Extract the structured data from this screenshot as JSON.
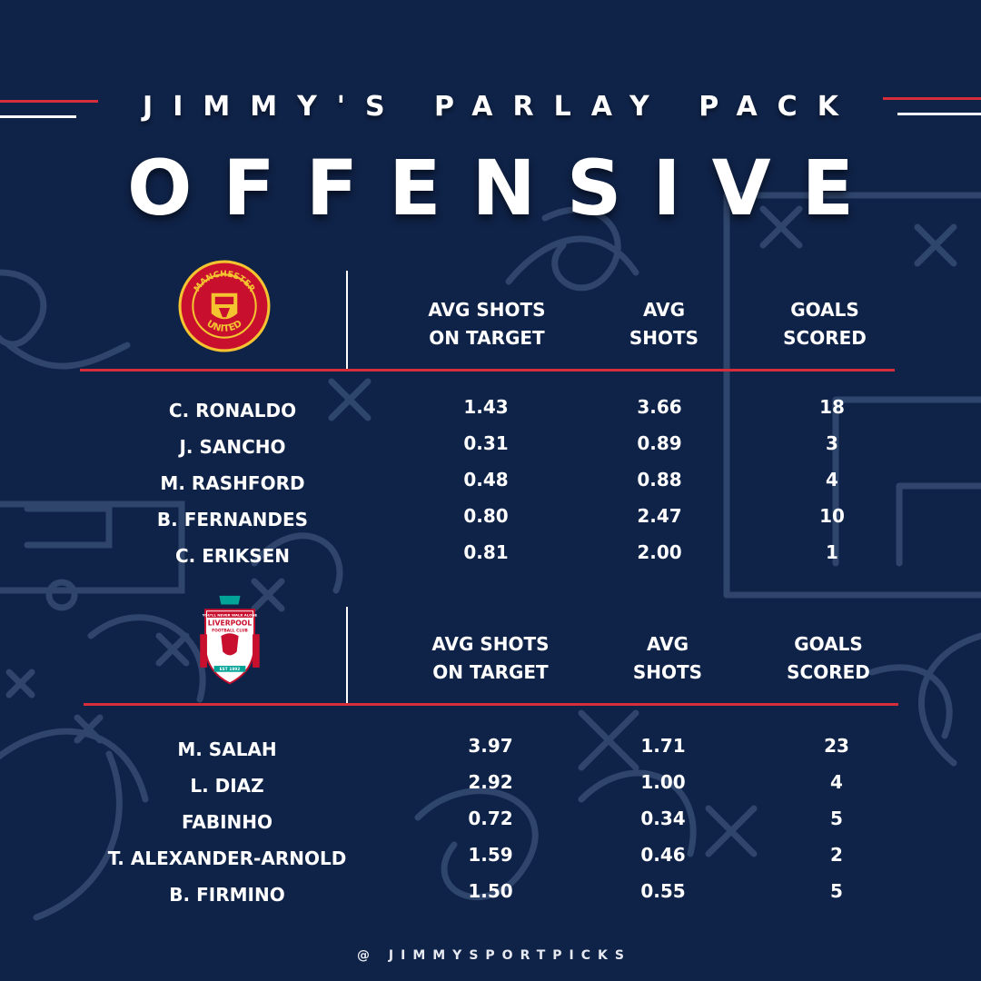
{
  "header": {
    "brand": "JIMMY'S PARLAY PACK",
    "title": "OFFENSIVE"
  },
  "colors": {
    "background": "#0f2247",
    "accent_red": "#d62d3a",
    "text": "#ffffff",
    "pattern": "#3a5178"
  },
  "teams": [
    {
      "crest_icon": "manchester-united-crest-icon",
      "crest_text_top": "MANCHESTER",
      "crest_text_bottom": "UNITED",
      "columns": [
        "AVG SHOTS\nON TARGET",
        "AVG\nSHOTS",
        "GOALS\nSCORED"
      ],
      "players": [
        {
          "name": "C. RONALDO",
          "sot": "1.43",
          "shots": "3.66",
          "goals": "18"
        },
        {
          "name": "J. SANCHO",
          "sot": "0.31",
          "shots": "0.89",
          "goals": "3"
        },
        {
          "name": "M. RASHFORD",
          "sot": "0.48",
          "shots": "0.88",
          "goals": "4"
        },
        {
          "name": "B. FERNANDES",
          "sot": "0.80",
          "shots": "2.47",
          "goals": "10"
        },
        {
          "name": "C. ERIKSEN",
          "sot": "0.81",
          "shots": "2.00",
          "goals": "1"
        }
      ]
    },
    {
      "crest_icon": "liverpool-crest-icon",
      "crest_text_top": "YOU'LL NEVER WALK ALONE",
      "crest_text_club": "LIVERPOOL",
      "crest_text_sub": "FOOTBALL CLUB",
      "crest_text_est": "EST 1892",
      "columns": [
        "AVG SHOTS\nON TARGET",
        "AVG\nSHOTS",
        "GOALS\nSCORED"
      ],
      "players": [
        {
          "name": "M. SALAH",
          "sot": "3.97",
          "shots": "1.71",
          "goals": "23"
        },
        {
          "name": "L. DIAZ",
          "sot": "2.92",
          "shots": "1.00",
          "goals": "4"
        },
        {
          "name": "FABINHO",
          "sot": "0.72",
          "shots": "0.34",
          "goals": "5"
        },
        {
          "name": "T. ALEXANDER-ARNOLD",
          "sot": "1.59",
          "shots": "0.46",
          "goals": "2"
        },
        {
          "name": "B. FIRMINO",
          "sot": "1.50",
          "shots": "0.55",
          "goals": "5"
        }
      ]
    }
  ],
  "footer": {
    "handle": "@ JIMMYSPORTPICKS"
  }
}
